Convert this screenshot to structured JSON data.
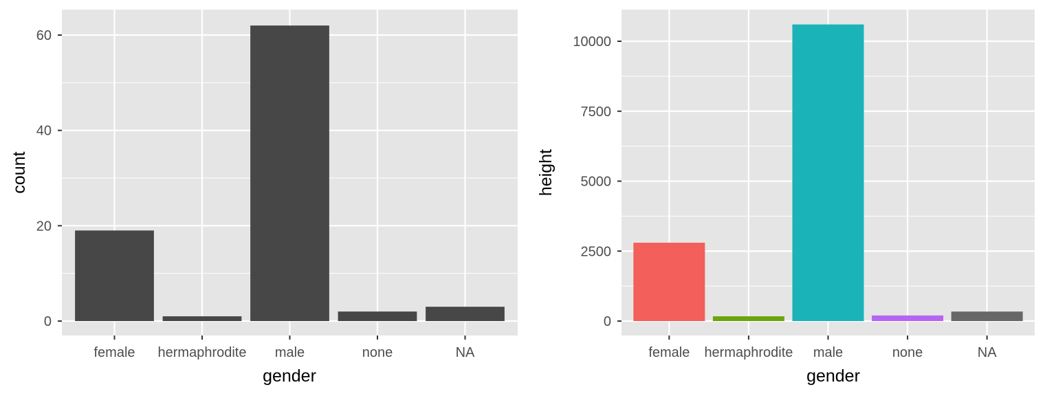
{
  "chart_data": [
    {
      "type": "bar",
      "categories": [
        "female",
        "hermaphrodite",
        "male",
        "none",
        "NA"
      ],
      "values": [
        19,
        1,
        62,
        2,
        3
      ],
      "xlabel": "gender",
      "ylabel": "count",
      "ylim": [
        0,
        65
      ],
      "yticks": [
        0,
        20,
        40,
        60
      ],
      "ytick_labels": [
        "0",
        "20",
        "40",
        "60"
      ],
      "bar_colors": [
        "#474747",
        "#474747",
        "#474747",
        "#474747",
        "#474747"
      ],
      "grid": true,
      "legend": "none"
    },
    {
      "type": "bar",
      "categories": [
        "female",
        "hermaphrodite",
        "male",
        "none",
        "NA"
      ],
      "values": [
        2800,
        170,
        10600,
        200,
        340
      ],
      "xlabel": "gender",
      "ylabel": "height",
      "ylim": [
        0,
        11000
      ],
      "yticks": [
        0,
        2500,
        5000,
        7500,
        10000
      ],
      "ytick_labels": [
        "0",
        "2500",
        "5000",
        "7500",
        "10000"
      ],
      "bar_colors": [
        "#F35F5A",
        "#6CA410",
        "#1AB3B8",
        "#B665F1",
        "#676767"
      ],
      "grid": true,
      "legend": "none"
    }
  ],
  "colors": {
    "panel_background": "#E5E5E5",
    "grid": "#FFFFFF",
    "tick_text": "#4D4D4D",
    "axis_tick": "#333333"
  }
}
